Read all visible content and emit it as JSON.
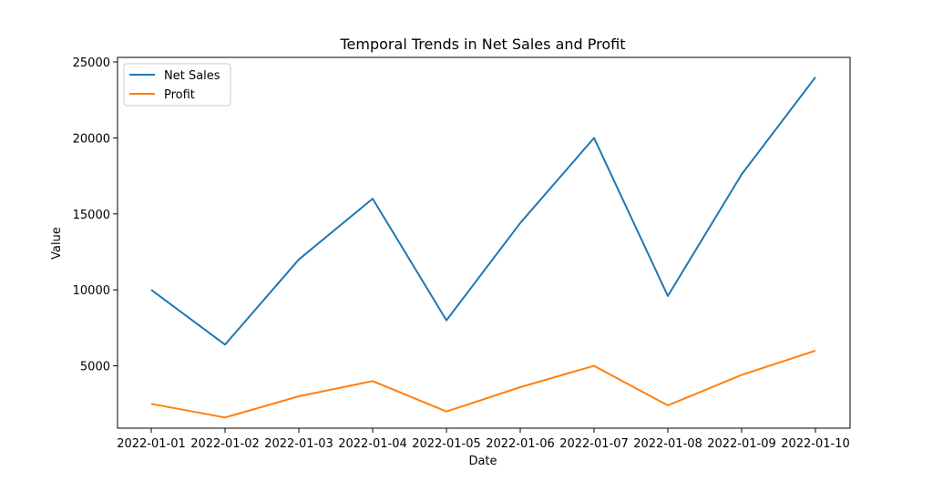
{
  "chart_data": {
    "type": "line",
    "title": "Temporal Trends in Net Sales and Profit",
    "xlabel": "Date",
    "ylabel": "Value",
    "x": [
      "2022-01-01",
      "2022-01-02",
      "2022-01-03",
      "2022-01-04",
      "2022-01-05",
      "2022-01-06",
      "2022-01-07",
      "2022-01-08",
      "2022-01-09",
      "2022-01-10"
    ],
    "ylim": [
      900,
      25300
    ],
    "yticks": [
      5000,
      10000,
      15000,
      20000,
      25000
    ],
    "grid": false,
    "legend_position": "top-left",
    "series": [
      {
        "name": "Net Sales",
        "color": "#1f77b4",
        "values": [
          10000,
          6400,
          12000,
          16000,
          8000,
          14400,
          20000,
          9600,
          17600,
          24000
        ]
      },
      {
        "name": "Profit",
        "color": "#ff7f0e",
        "values": [
          2500,
          1600,
          3000,
          4000,
          2000,
          3600,
          5000,
          2400,
          4400,
          6000
        ]
      }
    ]
  }
}
